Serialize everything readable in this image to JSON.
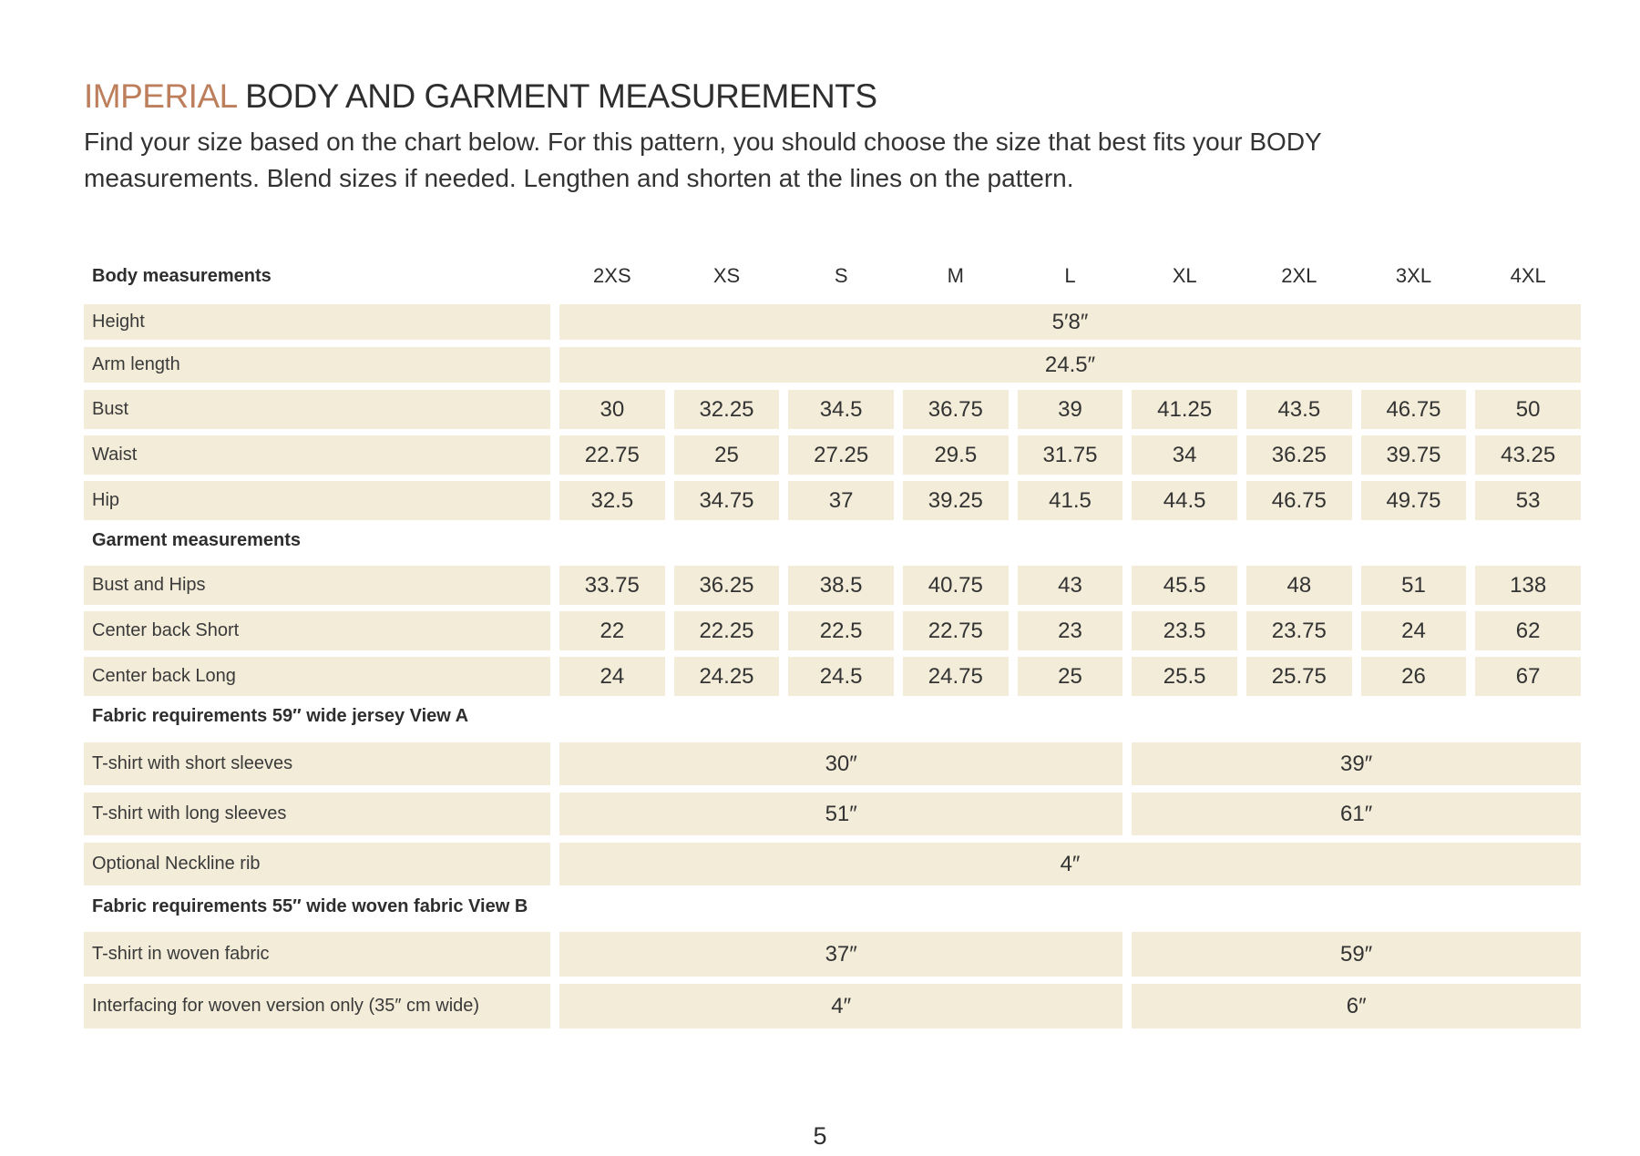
{
  "colors": {
    "accent": "#bd7e5c",
    "cell_bg": "#f2ecd8",
    "text": "#2e2e2e"
  },
  "title": {
    "accent": "IMPERIAL",
    "rest": " BODY AND GARMENT MEASUREMENTS"
  },
  "intro": {
    "line1": "Find your size based on the chart below. For this pattern, you should choose the size that best fits your BODY",
    "line2": "measurements. Blend sizes if needed. Lengthen and shorten at the lines on the pattern."
  },
  "sizes": [
    "2XS",
    "XS",
    "S",
    "M",
    "L",
    "XL",
    "2XL",
    "3XL",
    "4XL"
  ],
  "sections": {
    "body": {
      "header": "Body measurements",
      "merged_rows": [
        {
          "label": "Height",
          "value": "5′8″"
        },
        {
          "label": "Arm length",
          "value": "24.5″"
        }
      ],
      "rows": [
        {
          "label": "Bust",
          "values": [
            "30",
            "32.25",
            "34.5",
            "36.75",
            "39",
            "41.25",
            "43.5",
            "46.75",
            "50"
          ]
        },
        {
          "label": "Waist",
          "values": [
            "22.75",
            "25",
            "27.25",
            "29.5",
            "31.75",
            "34",
            "36.25",
            "39.75",
            "43.25"
          ]
        },
        {
          "label": "Hip",
          "values": [
            "32.5",
            "34.75",
            "37",
            "39.25",
            "41.5",
            "44.5",
            "46.75",
            "49.75",
            "53"
          ]
        }
      ]
    },
    "garment": {
      "header": "Garment measurements",
      "rows": [
        {
          "label": "Bust and Hips",
          "values": [
            "33.75",
            "36.25",
            "38.5",
            "40.75",
            "43",
            "45.5",
            "48",
            "51",
            "138"
          ]
        },
        {
          "label": "Center back Short",
          "values": [
            "22",
            "22.25",
            "22.5",
            "22.75",
            "23",
            "23.5",
            "23.75",
            "24",
            "62"
          ]
        },
        {
          "label": "Center back Long",
          "values": [
            "24",
            "24.25",
            "24.5",
            "24.75",
            "25",
            "25.5",
            "25.75",
            "26",
            "67"
          ]
        }
      ]
    },
    "fabric_a": {
      "header": "Fabric requirements 59″ wide jersey View A",
      "rows": [
        {
          "label": "T-shirt with short sleeves",
          "left": "30″",
          "right": "39″"
        },
        {
          "label": "T-shirt with long sleeves",
          "left": "51″",
          "right": "61″"
        }
      ],
      "full_row": {
        "label": "Optional Neckline rib",
        "value": "4″"
      }
    },
    "fabric_b": {
      "header": "Fabric requirements 55″ wide woven fabric View B",
      "rows": [
        {
          "label": "T-shirt in woven fabric",
          "left": "37″",
          "right": "59″"
        },
        {
          "label": "Interfacing for woven version only (35″ cm wide)",
          "left": "4″",
          "right": "6″"
        }
      ]
    }
  },
  "page_number": "5"
}
